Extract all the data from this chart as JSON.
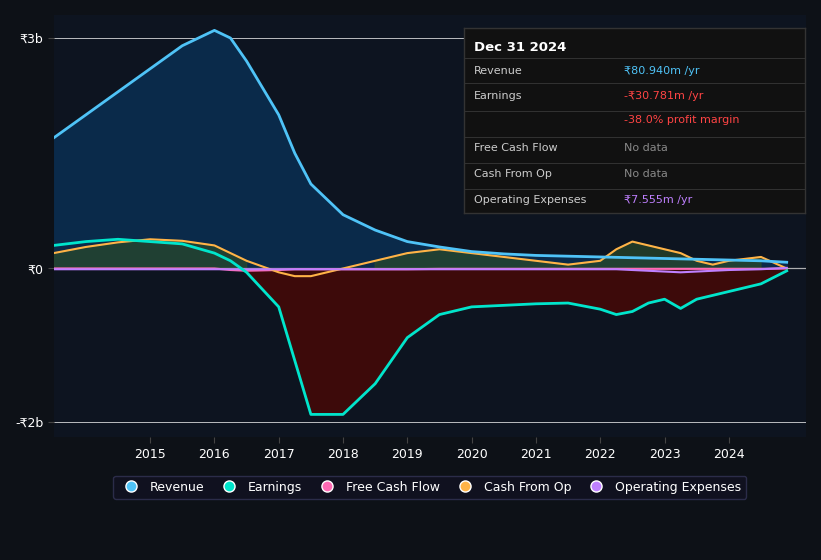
{
  "bg_color": "#0d1117",
  "chart_bg_color": "#0d1420",
  "grid_color": "#ffffff22",
  "zero_line_color": "#aaaaaa",
  "ylim": [
    -2200,
    3300
  ],
  "yticks": [
    -2000,
    0,
    3000
  ],
  "ytick_labels": [
    "-₹2b",
    "₹0",
    "₹3b"
  ],
  "years": [
    2013.5,
    2014.0,
    2014.5,
    2015.0,
    2015.5,
    2016.0,
    2016.25,
    2016.5,
    2017.0,
    2017.25,
    2017.5,
    2018.0,
    2018.5,
    2019.0,
    2019.5,
    2020.0,
    2020.5,
    2021.0,
    2021.5,
    2022.0,
    2022.25,
    2022.5,
    2022.75,
    2023.0,
    2023.25,
    2023.5,
    2023.75,
    2024.0,
    2024.5,
    2024.9
  ],
  "revenue": [
    1700,
    2000,
    2300,
    2600,
    2900,
    3100,
    3000,
    2700,
    2000,
    1500,
    1100,
    700,
    500,
    350,
    280,
    220,
    190,
    170,
    160,
    150,
    145,
    140,
    135,
    130,
    125,
    120,
    115,
    110,
    100,
    81
  ],
  "earnings": [
    300,
    350,
    380,
    350,
    320,
    200,
    100,
    -50,
    -500,
    -1200,
    -1900,
    -1900,
    -1500,
    -900,
    -600,
    -500,
    -480,
    -460,
    -450,
    -530,
    -600,
    -560,
    -450,
    -400,
    -520,
    -400,
    -350,
    -300,
    -200,
    -31
  ],
  "free_cash_flow": [
    0,
    0,
    0,
    0,
    0,
    0,
    -20,
    -30,
    -20,
    -10,
    -10,
    -10,
    -10,
    -10,
    -5,
    -5,
    -5,
    -5,
    -5,
    -5,
    -5,
    -5,
    -5,
    -5,
    -5,
    -5,
    -5,
    -5,
    -5,
    0
  ],
  "cash_from_op": [
    200,
    280,
    340,
    380,
    360,
    300,
    200,
    100,
    -50,
    -100,
    -100,
    0,
    100,
    200,
    250,
    200,
    150,
    100,
    50,
    100,
    250,
    350,
    300,
    250,
    200,
    100,
    50,
    100,
    150,
    0
  ],
  "operating_expenses": [
    -10,
    -10,
    -10,
    -10,
    -10,
    -10,
    -10,
    -10,
    -10,
    -10,
    -10,
    -10,
    -10,
    -10,
    -10,
    -10,
    -10,
    -10,
    -10,
    -10,
    -10,
    -20,
    -30,
    -40,
    -50,
    -40,
    -30,
    -20,
    -10,
    7.555
  ],
  "revenue_color": "#4fc3f7",
  "revenue_fill": "#0a2a4a",
  "earnings_color": "#00e5cc",
  "earnings_fill": "#3d0a0a",
  "free_cash_flow_color": "#ff69b4",
  "cash_from_op_color": "#ffb347",
  "cash_from_op_fill_pos": "#2a4a2a",
  "cash_from_op_fill_neg": "#4a2a0a",
  "operating_expenses_color": "#bf80ff",
  "info_box": {
    "date": "Dec 31 2024",
    "revenue_val": "₹80.940m /yr",
    "earnings_val": "-₹30.781m /yr",
    "margin": "-38.0% profit margin",
    "free_cf": "No data",
    "cash_op": "No data",
    "op_exp": "₹7.555m /yr",
    "revenue_color": "#4fc3f7",
    "earnings_color": "#ff4444",
    "margin_color": "#ff4444",
    "op_exp_color": "#bf80ff",
    "nodata_color": "#888888",
    "bg": "#111111",
    "border": "#333333",
    "text_color": "#cccccc",
    "label_color": "#ffffff"
  },
  "legend": [
    {
      "label": "Revenue",
      "color": "#4fc3f7"
    },
    {
      "label": "Earnings",
      "color": "#00e5cc"
    },
    {
      "label": "Free Cash Flow",
      "color": "#ff69b4"
    },
    {
      "label": "Cash From Op",
      "color": "#ffb347"
    },
    {
      "label": "Operating Expenses",
      "color": "#bf80ff"
    }
  ],
  "xtick_years": [
    2015,
    2016,
    2017,
    2018,
    2019,
    2020,
    2021,
    2022,
    2023,
    2024
  ]
}
